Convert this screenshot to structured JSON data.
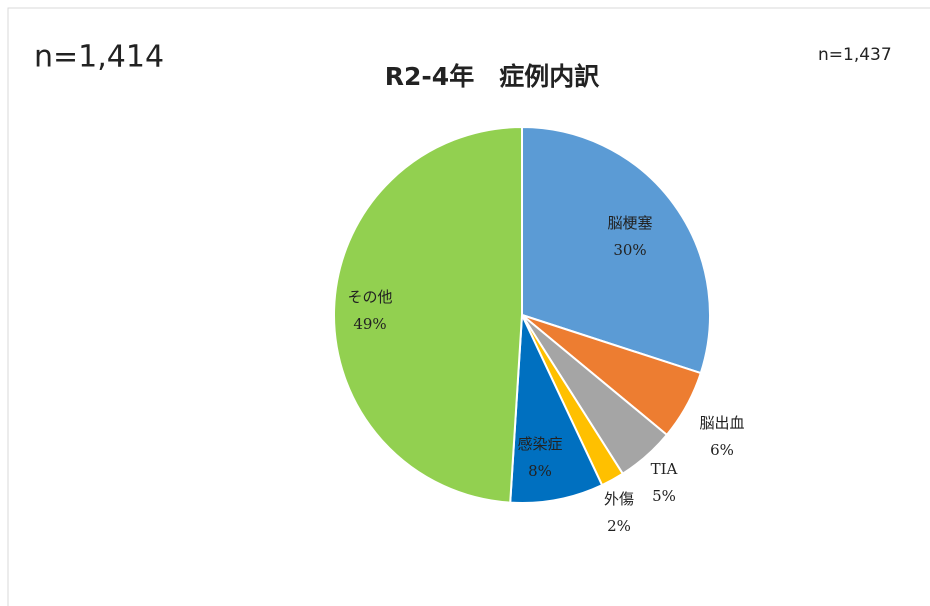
{
  "chart_data": {
    "type": "pie",
    "title": "R2-4年　症例内訳",
    "annotations": [
      "n=1,414",
      "n=1,437"
    ],
    "categories": [
      "脳梗塞",
      "脳出血",
      "TIA",
      "外傷",
      "感染症",
      "その他"
    ],
    "values": [
      30,
      6,
      5,
      2,
      8,
      49
    ],
    "value_labels": [
      "30%",
      "6%",
      "5%",
      "2%",
      "8%",
      "49%"
    ],
    "colors": [
      "#5b9bd5",
      "#ed7d31",
      "#a5a5a5",
      "#ffc000",
      "#0070c0",
      "#92d050"
    ]
  }
}
